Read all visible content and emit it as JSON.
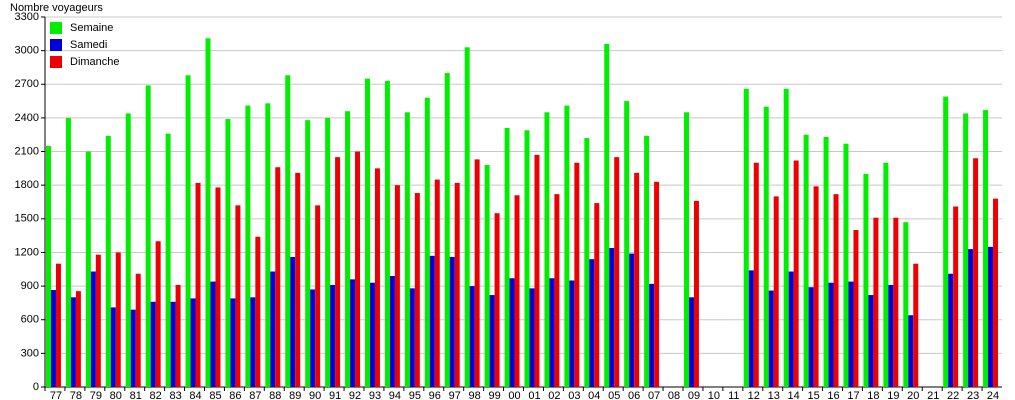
{
  "chart_data": {
    "type": "bar",
    "y_label": "Nombre voyageurs",
    "categories": [
      "77",
      "78",
      "79",
      "80",
      "81",
      "82",
      "83",
      "84",
      "85",
      "86",
      "87",
      "88",
      "89",
      "90",
      "91",
      "92",
      "93",
      "94",
      "95",
      "96",
      "97",
      "98",
      "99",
      "00",
      "01",
      "02",
      "03",
      "04",
      "05",
      "06",
      "07",
      "08",
      "09",
      "10",
      "11",
      "12",
      "13",
      "14",
      "15",
      "16",
      "17",
      "18",
      "19",
      "20",
      "21",
      "22",
      "23",
      "24"
    ],
    "series": [
      {
        "name": "Semaine",
        "color": "#00ee00",
        "values": [
          2150,
          2400,
          2100,
          2240,
          2440,
          2690,
          2260,
          2780,
          3110,
          2390,
          2510,
          2530,
          2780,
          2380,
          2400,
          2460,
          2750,
          2730,
          2450,
          2580,
          2800,
          3030,
          1980,
          2310,
          2290,
          2450,
          2510,
          2220,
          3060,
          2550,
          2240,
          null,
          2450,
          null,
          null,
          2660,
          2500,
          2660,
          2250,
          2230,
          2170,
          1900,
          2000,
          1470,
          null,
          2590,
          2440,
          2470
        ]
      },
      {
        "name": "Samedi",
        "color": "#0000dd",
        "values": [
          865,
          800,
          1030,
          710,
          690,
          760,
          760,
          790,
          940,
          790,
          800,
          1030,
          1160,
          870,
          910,
          960,
          930,
          990,
          880,
          1170,
          1160,
          900,
          820,
          970,
          880,
          970,
          950,
          1140,
          1240,
          1190,
          920,
          null,
          800,
          null,
          null,
          1040,
          860,
          1030,
          890,
          930,
          940,
          820,
          910,
          640,
          null,
          1010,
          1230,
          1250
        ]
      },
      {
        "name": "Dimanche",
        "color": "#ee0000",
        "values": [
          1100,
          855,
          1180,
          1200,
          1010,
          1300,
          910,
          1820,
          1780,
          1620,
          1340,
          1960,
          1910,
          1620,
          2050,
          2100,
          1950,
          1800,
          1730,
          1850,
          1820,
          2030,
          1550,
          1710,
          2070,
          1720,
          2000,
          1640,
          2050,
          1910,
          1830,
          null,
          1660,
          null,
          null,
          2000,
          1700,
          2020,
          1790,
          1720,
          1400,
          1510,
          1510,
          1100,
          null,
          1610,
          2040,
          1680
        ]
      }
    ],
    "ylim": [
      0,
      3300
    ],
    "yticks": [
      0,
      300,
      600,
      900,
      1200,
      1500,
      1800,
      2100,
      2400,
      2700,
      3000,
      3300
    ],
    "grid": true,
    "legend": "top-left"
  }
}
